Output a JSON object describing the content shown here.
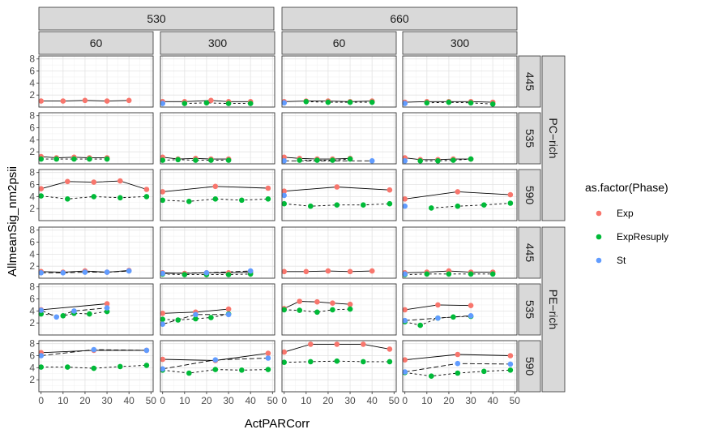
{
  "chart_data": {
    "type": "scatter",
    "xlabel": "ActPARCorr",
    "ylabel": "AllmeanSig_nm2psii",
    "xlim": [
      -1,
      51
    ],
    "ylim": [
      0,
      8.5
    ],
    "x_ticks": [
      0,
      10,
      20,
      30,
      40,
      50
    ],
    "y_ticks": [
      2,
      4,
      6,
      8
    ],
    "grid": true,
    "legend": {
      "title": "as.factor(Phase)",
      "position": "right",
      "entries": [
        {
          "name": "Exp",
          "color": "#F8766D"
        },
        {
          "name": "ExpResuply",
          "color": "#00BA38"
        },
        {
          "name": "St",
          "color": "#619CFF"
        }
      ]
    },
    "col_strip_top": [
      "530",
      "660"
    ],
    "col_strip_bottom": [
      "60",
      "300",
      "60",
      "300"
    ],
    "row_strip_outer": [
      "PC−rich",
      "PE−rich"
    ],
    "row_strip_inner": [
      "445",
      "535",
      "590",
      "445",
      "535",
      "590"
    ],
    "panels": [
      [
        {
          "Exp": [
            [
              0,
              1.0
            ],
            [
              10,
              1.0
            ],
            [
              20,
              1.1
            ],
            [
              30,
              1.0
            ],
            [
              40,
              1.1
            ]
          ],
          "ExpResuply": [],
          "St": []
        },
        {
          "Exp": [
            [
              0,
              0.9
            ],
            [
              10,
              0.9
            ],
            [
              22,
              1.1
            ],
            [
              30,
              0.9
            ],
            [
              40,
              0.9
            ]
          ],
          "ExpResuply": [
            [
              10,
              0.6
            ],
            [
              20,
              0.7
            ],
            [
              30,
              0.6
            ],
            [
              40,
              0.6
            ]
          ],
          "St": [
            [
              0,
              0.6
            ]
          ]
        },
        {
          "Exp": [
            [
              0,
              0.9
            ],
            [
              10,
              1.0
            ],
            [
              20,
              1.0
            ],
            [
              30,
              0.9
            ],
            [
              40,
              1.0
            ]
          ],
          "ExpResuply": [
            [
              10,
              0.9
            ],
            [
              20,
              0.8
            ],
            [
              30,
              0.8
            ],
            [
              40,
              0.8
            ]
          ],
          "St": [
            [
              0,
              0.7
            ]
          ]
        },
        {
          "Exp": [
            [
              0,
              0.8
            ],
            [
              10,
              0.9
            ],
            [
              20,
              0.9
            ],
            [
              30,
              0.9
            ],
            [
              40,
              0.8
            ]
          ],
          "ExpResuply": [
            [
              10,
              0.7
            ],
            [
              20,
              0.8
            ],
            [
              30,
              0.7
            ],
            [
              40,
              0.5
            ]
          ],
          "St": [
            [
              0,
              0.6
            ]
          ]
        }
      ],
      [
        {
          "Exp": [
            [
              0,
              1.2
            ],
            [
              7,
              1.0
            ],
            [
              15,
              1.1
            ],
            [
              22,
              1.0
            ],
            [
              30,
              1.0
            ]
          ],
          "ExpResuply": [
            [
              0,
              0.8
            ],
            [
              7,
              0.8
            ],
            [
              15,
              0.8
            ],
            [
              22,
              0.8
            ],
            [
              30,
              0.8
            ]
          ],
          "St": []
        },
        {
          "Exp": [
            [
              0,
              1.1
            ],
            [
              7,
              0.8
            ],
            [
              15,
              0.9
            ],
            [
              22,
              0.8
            ],
            [
              30,
              0.8
            ]
          ],
          "ExpResuply": [
            [
              0,
              0.6
            ],
            [
              7,
              0.7
            ],
            [
              15,
              0.6
            ],
            [
              22,
              0.6
            ],
            [
              30,
              0.6
            ]
          ],
          "St": []
        },
        {
          "Exp": [
            [
              0,
              1.1
            ],
            [
              7,
              0.9
            ],
            [
              15,
              0.8
            ],
            [
              22,
              0.8
            ],
            [
              30,
              0.9
            ]
          ],
          "ExpResuply": [
            [
              7,
              0.6
            ],
            [
              15,
              0.6
            ],
            [
              22,
              0.6
            ],
            [
              30,
              0.8
            ]
          ],
          "St": [
            [
              0,
              0.5
            ],
            [
              40,
              0.5
            ]
          ]
        },
        {
          "Exp": [
            [
              0,
              1.0
            ],
            [
              7,
              0.7
            ],
            [
              15,
              0.7
            ],
            [
              22,
              0.8
            ],
            [
              30,
              0.8
            ]
          ],
          "ExpResuply": [
            [
              7,
              0.5
            ],
            [
              15,
              0.5
            ],
            [
              22,
              0.6
            ],
            [
              30,
              0.8
            ]
          ],
          "St": [
            [
              0,
              0.5
            ]
          ]
        }
      ],
      [
        {
          "Exp": [
            [
              0,
              5.3
            ],
            [
              12,
              6.5
            ],
            [
              24,
              6.4
            ],
            [
              36,
              6.6
            ],
            [
              48,
              5.2
            ]
          ],
          "ExpResuply": [
            [
              0,
              4.1
            ],
            [
              12,
              3.6
            ],
            [
              24,
              4.0
            ],
            [
              36,
              3.8
            ],
            [
              48,
              4.0
            ]
          ],
          "St": []
        },
        {
          "Exp": [
            [
              0,
              4.8
            ],
            [
              24,
              5.7
            ],
            [
              48,
              5.4
            ]
          ],
          "ExpResuply": [
            [
              0,
              3.4
            ],
            [
              12,
              3.2
            ],
            [
              24,
              3.6
            ],
            [
              36,
              3.4
            ],
            [
              48,
              3.6
            ]
          ],
          "St": []
        },
        {
          "Exp": [
            [
              0,
              4.9
            ],
            [
              24,
              5.6
            ],
            [
              48,
              5.1
            ]
          ],
          "ExpResuply": [
            [
              0,
              2.8
            ],
            [
              12,
              2.4
            ],
            [
              24,
              2.6
            ],
            [
              36,
              2.6
            ],
            [
              48,
              2.8
            ]
          ],
          "St": [
            [
              0,
              4.2
            ]
          ]
        },
        {
          "Exp": [
            [
              0,
              3.6
            ],
            [
              24,
              4.8
            ],
            [
              48,
              4.3
            ]
          ],
          "ExpResuply": [
            [
              12,
              2.1
            ],
            [
              24,
              2.4
            ],
            [
              36,
              2.6
            ],
            [
              48,
              2.9
            ]
          ],
          "St": [
            [
              0,
              2.4
            ]
          ]
        }
      ],
      [
        {
          "Exp": [
            [
              0,
              1.1
            ],
            [
              10,
              1.0
            ],
            [
              20,
              1.2
            ],
            [
              30,
              1.0
            ],
            [
              40,
              1.3
            ]
          ],
          "ExpResuply": [],
          "St": [
            [
              0,
              0.9
            ],
            [
              10,
              0.9
            ],
            [
              20,
              1.0
            ],
            [
              30,
              1.0
            ],
            [
              40,
              1.2
            ]
          ]
        },
        {
          "Exp": [
            [
              0,
              0.9
            ],
            [
              10,
              0.8
            ],
            [
              20,
              0.9
            ],
            [
              30,
              0.9
            ],
            [
              40,
              1.0
            ]
          ],
          "ExpResuply": [
            [
              0,
              0.7
            ],
            [
              10,
              0.6
            ],
            [
              20,
              0.6
            ],
            [
              30,
              0.6
            ],
            [
              40,
              0.7
            ]
          ],
          "St": [
            [
              0,
              0.8
            ],
            [
              20,
              0.9
            ],
            [
              40,
              1.2
            ]
          ]
        },
        {
          "Exp": [
            [
              0,
              1.1
            ],
            [
              10,
              1.1
            ],
            [
              20,
              1.2
            ],
            [
              30,
              1.1
            ],
            [
              40,
              1.2
            ]
          ],
          "ExpResuply": [],
          "St": []
        },
        {
          "Exp": [
            [
              0,
              0.9
            ],
            [
              10,
              1.0
            ],
            [
              20,
              1.2
            ],
            [
              30,
              1.0
            ],
            [
              40,
              1.0
            ]
          ],
          "ExpResuply": [
            [
              0,
              0.6
            ],
            [
              10,
              0.7
            ],
            [
              20,
              0.7
            ],
            [
              30,
              0.7
            ],
            [
              40,
              0.7
            ]
          ],
          "St": [
            [
              0,
              0.7
            ]
          ]
        }
      ],
      [
        {
          "Exp": [
            [
              0,
              4.2
            ],
            [
              30,
              5.2
            ]
          ],
          "ExpResuply": [
            [
              0,
              3.5
            ],
            [
              10,
              3.2
            ],
            [
              15,
              3.6
            ],
            [
              22,
              3.5
            ],
            [
              30,
              3.9
            ]
          ],
          "St": [
            [
              0,
              4.1
            ],
            [
              7,
              3.0
            ],
            [
              15,
              4.0
            ],
            [
              30,
              4.5
            ]
          ]
        },
        {
          "Exp": [
            [
              0,
              3.6
            ],
            [
              15,
              3.8
            ],
            [
              30,
              4.3
            ]
          ],
          "ExpResuply": [
            [
              0,
              2.6
            ],
            [
              7,
              2.5
            ],
            [
              15,
              2.7
            ],
            [
              22,
              2.9
            ],
            [
              30,
              3.5
            ]
          ],
          "St": [
            [
              0,
              1.8
            ],
            [
              15,
              3.4
            ],
            [
              30,
              3.4
            ]
          ]
        },
        {
          "Exp": [
            [
              0,
              4.4
            ],
            [
              7,
              5.6
            ],
            [
              15,
              5.5
            ],
            [
              22,
              5.3
            ],
            [
              30,
              5.1
            ]
          ],
          "ExpResuply": [
            [
              0,
              4.2
            ],
            [
              7,
              4.1
            ],
            [
              15,
              3.8
            ],
            [
              22,
              4.2
            ],
            [
              30,
              4.3
            ]
          ],
          "St": []
        },
        {
          "Exp": [
            [
              0,
              4.2
            ],
            [
              15,
              5.0
            ],
            [
              30,
              4.9
            ]
          ],
          "ExpResuply": [
            [
              0,
              2.2
            ],
            [
              7,
              1.6
            ],
            [
              15,
              2.8
            ],
            [
              22,
              3.0
            ],
            [
              30,
              3.1
            ]
          ],
          "St": [
            [
              0,
              2.4
            ],
            [
              15,
              2.8
            ],
            [
              30,
              3.2
            ]
          ]
        }
      ],
      [
        {
          "Exp": [
            [
              0,
              6.5
            ],
            [
              24,
              6.9
            ],
            [
              48,
              6.9
            ]
          ],
          "ExpResuply": [
            [
              0,
              4.1
            ],
            [
              12,
              4.1
            ],
            [
              24,
              3.9
            ],
            [
              36,
              4.2
            ],
            [
              48,
              4.4
            ]
          ],
          "St": [
            [
              0,
              6.0
            ],
            [
              24,
              7.0
            ],
            [
              48,
              6.9
            ]
          ]
        },
        {
          "Exp": [
            [
              0,
              5.4
            ],
            [
              24,
              5.2
            ],
            [
              48,
              6.4
            ]
          ],
          "ExpResuply": [
            [
              0,
              3.6
            ],
            [
              12,
              3.1
            ],
            [
              24,
              3.7
            ],
            [
              36,
              3.6
            ],
            [
              48,
              3.7
            ]
          ],
          "St": [
            [
              0,
              3.8
            ],
            [
              24,
              5.3
            ],
            [
              48,
              5.6
            ]
          ]
        },
        {
          "Exp": [
            [
              0,
              6.6
            ],
            [
              12,
              7.9
            ],
            [
              24,
              7.9
            ],
            [
              36,
              7.9
            ],
            [
              48,
              7.1
            ]
          ],
          "ExpResuply": [
            [
              0,
              4.9
            ],
            [
              12,
              5.0
            ],
            [
              24,
              5.1
            ],
            [
              36,
              5.0
            ],
            [
              48,
              5.0
            ]
          ],
          "St": []
        },
        {
          "Exp": [
            [
              0,
              5.3
            ],
            [
              24,
              6.2
            ],
            [
              48,
              6.0
            ]
          ],
          "ExpResuply": [
            [
              0,
              3.2
            ],
            [
              12,
              2.6
            ],
            [
              24,
              3.1
            ],
            [
              36,
              3.4
            ],
            [
              48,
              3.6
            ]
          ],
          "St": [
            [
              0,
              3.3
            ],
            [
              24,
              4.7
            ],
            [
              48,
              4.6
            ]
          ]
        }
      ]
    ]
  }
}
